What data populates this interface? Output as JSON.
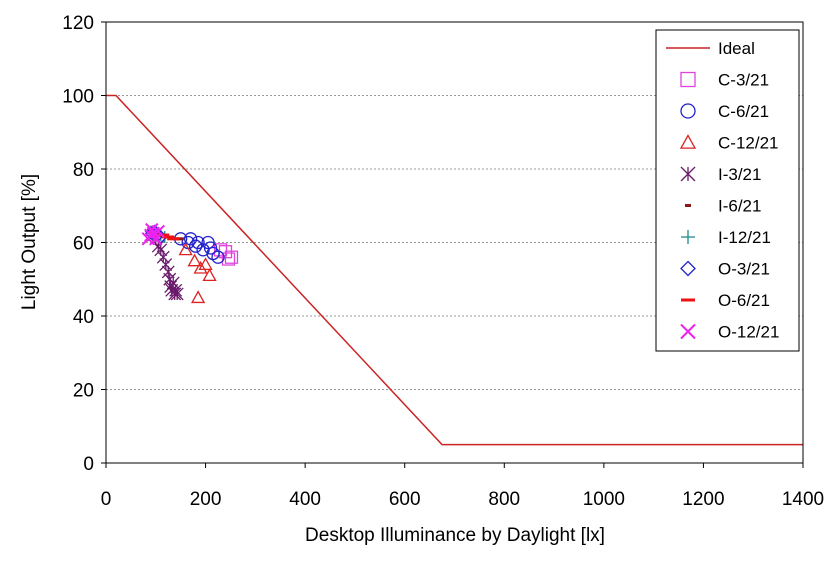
{
  "chart_data": {
    "type": "scatter",
    "xlabel": "Desktop Illuminance by Daylight [lx]",
    "ylabel": "Light  Output [%]",
    "xlim": [
      0,
      1400
    ],
    "ylim": [
      0,
      120
    ],
    "x_ticks": [
      "0",
      "200",
      "400",
      "600",
      "800",
      "1000",
      "1200",
      "1400"
    ],
    "y_ticks": [
      "0",
      "20",
      "40",
      "60",
      "80",
      "100",
      "120"
    ],
    "grid": "horizontal dashed",
    "legend_position": "top-right",
    "series": [
      {
        "name": "Ideal",
        "marker": "line",
        "color": "#cc2222",
        "points": [
          [
            0,
            100
          ],
          [
            20,
            100
          ],
          [
            675,
            5
          ],
          [
            1400,
            5
          ]
        ]
      },
      {
        "name": "C-3/21",
        "marker": "square",
        "color": "#dd44dd",
        "points": [
          [
            240,
            57.5
          ],
          [
            252,
            56
          ],
          [
            230,
            58
          ],
          [
            246,
            55.5
          ]
        ]
      },
      {
        "name": "C-6/21",
        "marker": "circle",
        "color": "#2222cc",
        "points": [
          [
            150,
            61
          ],
          [
            165,
            60
          ],
          [
            180,
            59
          ],
          [
            195,
            58
          ],
          [
            205,
            60
          ],
          [
            215,
            57
          ],
          [
            225,
            56
          ],
          [
            210,
            58.5
          ],
          [
            185,
            60
          ],
          [
            170,
            61
          ]
        ]
      },
      {
        "name": "C-12/21",
        "marker": "triangle",
        "color": "#dd2222",
        "points": [
          [
            185,
            45
          ],
          [
            190,
            53
          ],
          [
            200,
            54
          ],
          [
            208,
            51
          ],
          [
            178,
            55
          ],
          [
            160,
            58
          ]
        ]
      },
      {
        "name": "I-3/21",
        "marker": "asterisk",
        "color": "#6a1a6a",
        "points": [
          [
            95,
            62
          ],
          [
            100,
            61
          ],
          [
            105,
            59
          ],
          [
            110,
            58
          ],
          [
            115,
            56
          ],
          [
            120,
            54
          ],
          [
            125,
            52
          ],
          [
            128,
            50
          ],
          [
            130,
            48
          ],
          [
            132,
            47
          ],
          [
            135,
            49
          ],
          [
            138,
            46
          ],
          [
            140,
            47
          ],
          [
            143,
            46
          ]
        ]
      },
      {
        "name": "I-6/21",
        "marker": "dash",
        "color": "#8b1a1a",
        "points": [
          [
            110,
            62
          ],
          [
            120,
            62
          ],
          [
            130,
            61.5
          ],
          [
            140,
            61
          ],
          [
            150,
            61
          ]
        ]
      },
      {
        "name": "I-12/21",
        "marker": "plus",
        "color": "#1a8a8a",
        "points": [
          [
            90,
            63
          ],
          [
            100,
            62.5
          ],
          [
            110,
            62
          ],
          [
            118,
            61.5
          ]
        ]
      },
      {
        "name": "O-3/21",
        "marker": "diamond",
        "color": "#2222cc",
        "points": [
          [
            92,
            62.5
          ],
          [
            98,
            63
          ],
          [
            104,
            62
          ],
          [
            110,
            61.5
          ]
        ]
      },
      {
        "name": "O-6/21",
        "marker": "bar",
        "color": "#ee1111",
        "points": [
          [
            100,
            62
          ],
          [
            115,
            62
          ],
          [
            125,
            61.5
          ],
          [
            135,
            61
          ]
        ]
      },
      {
        "name": "O-12/21",
        "marker": "x",
        "color": "#ee22ee",
        "points": [
          [
            85,
            61
          ],
          [
            90,
            62
          ],
          [
            95,
            62.5
          ],
          [
            100,
            61
          ],
          [
            105,
            63
          ],
          [
            92,
            63.5
          ]
        ]
      }
    ]
  }
}
